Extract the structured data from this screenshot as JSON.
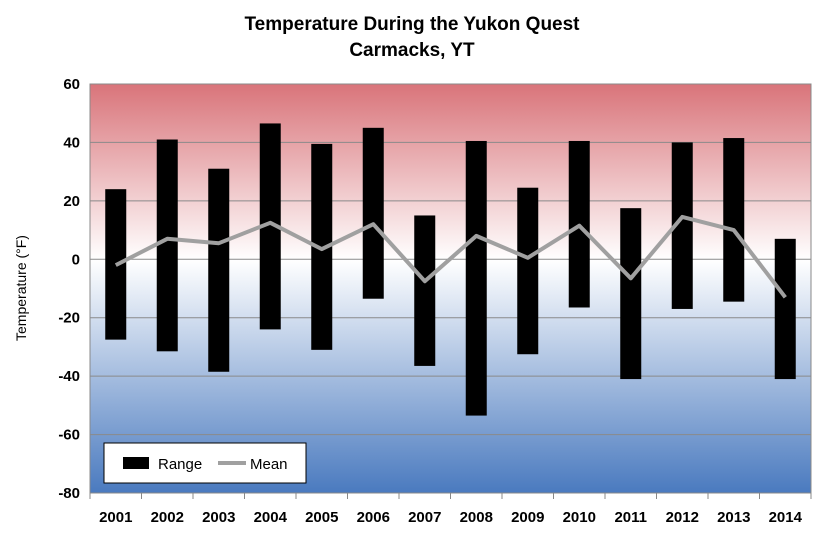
{
  "chart_data": {
    "type": "bar",
    "title": "Temperature During the Yukon Quest",
    "subtitle": "Carmacks, YT",
    "xlabel": "",
    "ylabel": "Temperature (°F)",
    "ylim": [
      -80,
      60
    ],
    "yticks": [
      "60",
      "40",
      "20",
      "0",
      "-20",
      "-40",
      "-60",
      "-80"
    ],
    "ytick_values": [
      60,
      40,
      20,
      0,
      -20,
      -40,
      -60,
      -80
    ],
    "grid": true,
    "legend_position": "bottom-left",
    "categories": [
      "2001",
      "2002",
      "2003",
      "2004",
      "2005",
      "2006",
      "2007",
      "2008",
      "2009",
      "2010",
      "2011",
      "2012",
      "2013",
      "2014"
    ],
    "series": [
      {
        "name": "Range",
        "type": "floating-bar",
        "color": "#000000",
        "low": [
          -27.5,
          -31.5,
          -38.5,
          -24,
          -31,
          -13.5,
          -36.5,
          -53.5,
          -32.5,
          -16.5,
          -41,
          -17,
          -14.5,
          -41
        ],
        "high": [
          24,
          41,
          31,
          46.5,
          39.5,
          45,
          15,
          40.5,
          24.5,
          40.5,
          17.5,
          40,
          41.5,
          7
        ]
      },
      {
        "name": "Mean",
        "type": "line",
        "color": "#a0a0a0",
        "values": [
          -2,
          7,
          5.5,
          12.5,
          3.5,
          12,
          -7.5,
          8,
          0.5,
          11.5,
          -6.5,
          14.5,
          10,
          -13
        ]
      }
    ],
    "background_gradient": {
      "top": "#d9747a",
      "middle": "#ffffff",
      "bottom": "#4a7abf"
    }
  }
}
